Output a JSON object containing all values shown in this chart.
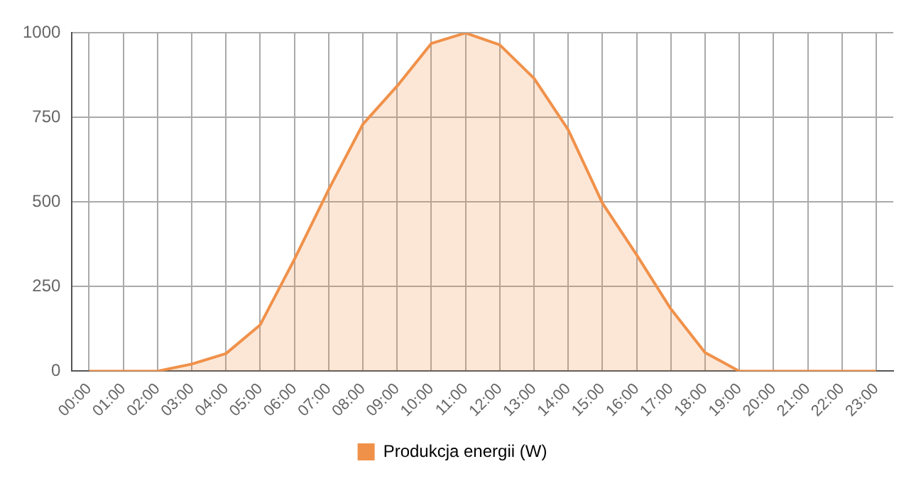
{
  "chart_data": {
    "type": "area",
    "categories": [
      "00:00",
      "01:00",
      "02:00",
      "03:00",
      "04:00",
      "05:00",
      "06:00",
      "07:00",
      "08:00",
      "09:00",
      "10:00",
      "11:00",
      "12:00",
      "13:00",
      "14:00",
      "15:00",
      "16:00",
      "17:00",
      "18:00",
      "19:00",
      "20:00",
      "21:00",
      "22:00",
      "23:00"
    ],
    "series": [
      {
        "name": "Produkcja energii (W)",
        "color": "#f0914a",
        "values": [
          0,
          0,
          0,
          21,
          52,
          137,
          331,
          537,
          730,
          843,
          969,
          1000,
          965,
          866,
          714,
          497,
          344,
          184,
          55,
          0,
          0,
          0,
          0,
          0
        ]
      }
    ],
    "ylim": [
      0,
      1000
    ],
    "yticks": [
      0,
      250,
      500,
      750,
      1000
    ],
    "grid": true,
    "legend": "bottom",
    "marker": "none"
  }
}
